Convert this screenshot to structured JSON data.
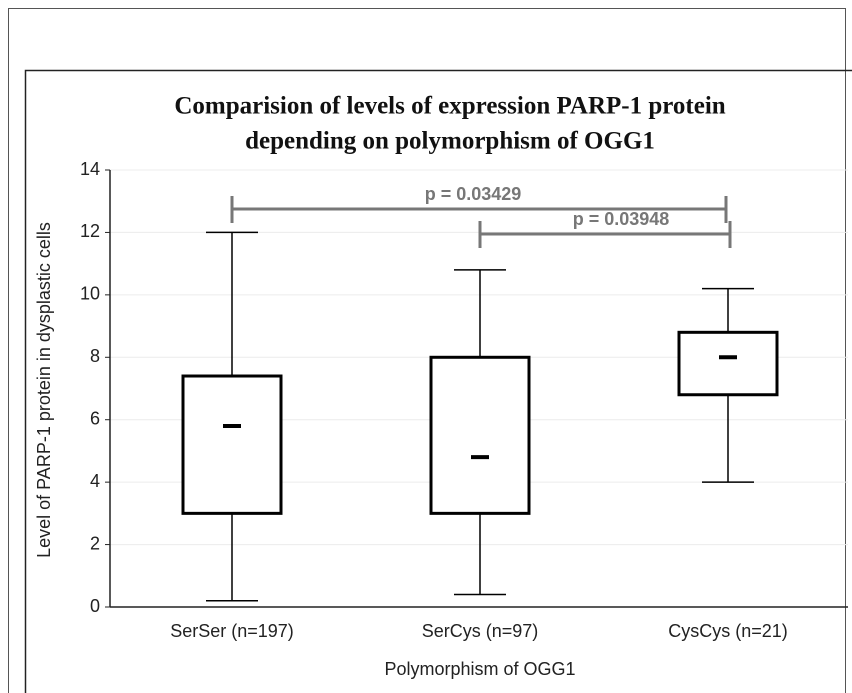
{
  "chart_data": {
    "type": "box",
    "title": [
      "Comparision of levels of expression PARP-1 protein",
      "depending on polymorphism of OGG1"
    ],
    "x_label": "Polymorphism of OGG1",
    "y_label": "Level of PARP-1 protein in dysplastic cells",
    "categories": [
      "SerSer (n=197)",
      "SerCys (n=97)",
      "CysCys (n=21)"
    ],
    "boxes": [
      {
        "min": 0.2,
        "q1": 3,
        "median": 5.8,
        "q3": 7.4,
        "max": 12
      },
      {
        "min": 0.4,
        "q1": 3,
        "median": 4.8,
        "q3": 8,
        "max": 10.8
      },
      {
        "min": 4,
        "q1": 6.8,
        "median": 8,
        "q3": 8.8,
        "max": 10.2
      }
    ],
    "annotations": [
      "p = 0.03429",
      "p = 0.03948"
    ],
    "color": "#000000",
    "annotation_color": "#777777",
    "ylim": [
      0,
      14
    ],
    "yticks": [
      0,
      2,
      4,
      6,
      8,
      10,
      12,
      14
    ],
    "grid": true
  }
}
